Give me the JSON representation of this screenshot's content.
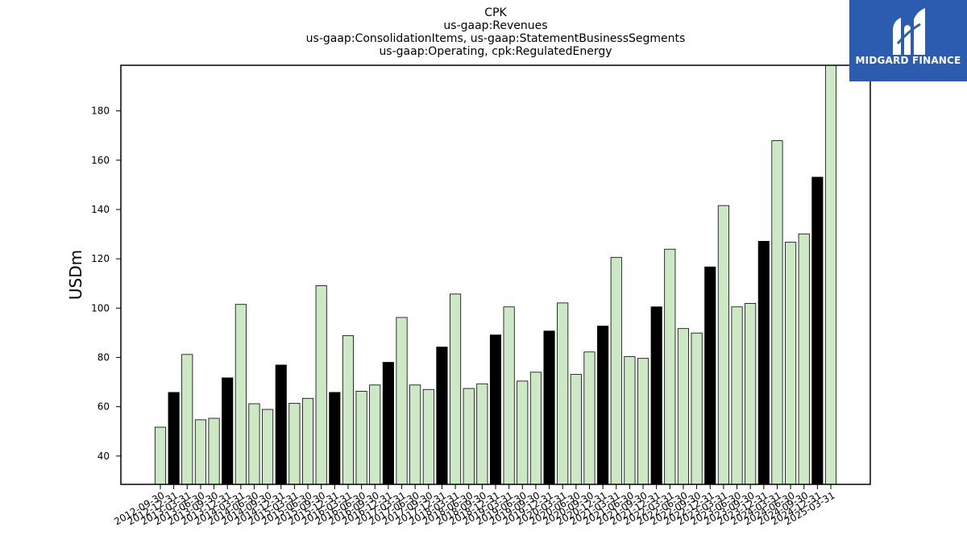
{
  "chart_data": {
    "type": "bar",
    "title_lines": [
      "CPK",
      "us-gaap:Revenues",
      "us-gaap:ConsolidationItems, us-gaap:StatementBusinessSegments",
      "us-gaap:Operating, cpk:RegulatedEnergy"
    ],
    "ylabel": "USDm",
    "xlabel": "",
    "ylim": [
      28.5,
      198.5
    ],
    "yticks": [
      40,
      60,
      80,
      100,
      120,
      140,
      160,
      180
    ],
    "grid": false,
    "categories": [
      "2012-09-30",
      "2012-12-31",
      "2013-03-31",
      "2013-06-30",
      "2013-09-30",
      "2013-12-31",
      "2014-03-31",
      "2014-06-30",
      "2014-09-30",
      "2014-12-31",
      "2015-03-31",
      "2015-06-30",
      "2015-09-30",
      "2015-12-31",
      "2016-03-31",
      "2016-06-30",
      "2016-09-30",
      "2016-12-31",
      "2017-03-31",
      "2017-06-30",
      "2017-09-30",
      "2017-12-31",
      "2018-03-31",
      "2018-06-30",
      "2018-09-30",
      "2018-12-31",
      "2019-03-31",
      "2019-06-30",
      "2019-09-30",
      "2019-12-31",
      "2020-03-31",
      "2020-06-30",
      "2020-09-30",
      "2020-12-31",
      "2021-03-31",
      "2021-06-30",
      "2021-09-30",
      "2021-12-31",
      "2022-03-31",
      "2022-06-30",
      "2022-09-30",
      "2022-12-31",
      "2023-03-31",
      "2023-06-30",
      "2023-09-30",
      "2023-12-31",
      "2024-03-31",
      "2024-06-30",
      "2024-09-30",
      "2024-12-31",
      "2025-03-31"
    ],
    "values": [
      51.7,
      65.8,
      81.2,
      54.7,
      55.3,
      71.7,
      101.5,
      61.2,
      58.9,
      76.9,
      61.4,
      63.4,
      109.1,
      65.8,
      88.8,
      66.3,
      68.8,
      78.0,
      96.2,
      68.8,
      67.0,
      84.2,
      105.7,
      67.4,
      69.3,
      89.1,
      100.5,
      70.4,
      74.0,
      90.7,
      102.1,
      73.1,
      82.2,
      92.7,
      120.6,
      80.3,
      79.6,
      100.5,
      123.9,
      91.7,
      89.9,
      116.7,
      141.6,
      100.5,
      101.9,
      127.1,
      167.9,
      126.7,
      130.1,
      153.1,
      198.5
    ],
    "bar_colors": {
      "quarter": "#cce8c4",
      "year_end": "#000000",
      "edge": "#000000"
    },
    "year_end_suffix": "12-31"
  },
  "logo": {
    "text": "MIDGARD FINANCE",
    "icon": "midgard-logo-mark",
    "background": "#2b5cb0"
  }
}
